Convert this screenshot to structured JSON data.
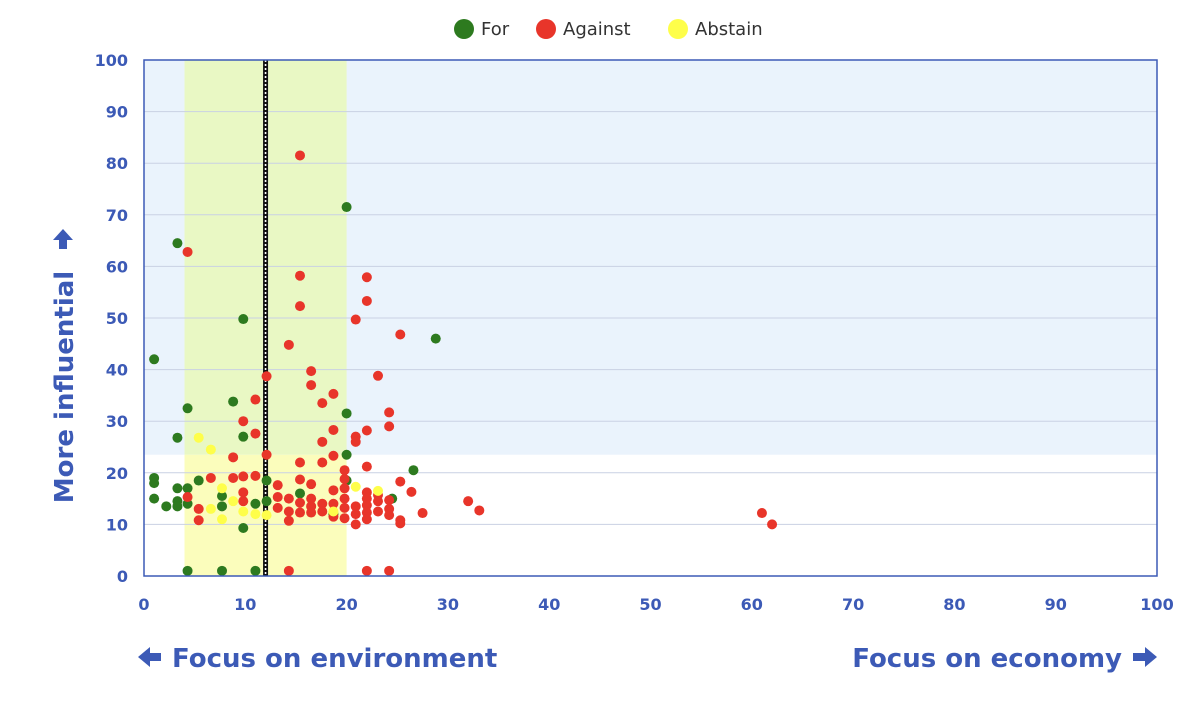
{
  "chart_data": {
    "type": "scatter",
    "xlim": [
      0,
      100
    ],
    "ylim": [
      0,
      100
    ],
    "x_ticks": [
      0,
      10,
      20,
      30,
      40,
      50,
      60,
      70,
      80,
      90,
      100
    ],
    "y_ticks": [
      0,
      10,
      20,
      30,
      40,
      50,
      60,
      70,
      80,
      90,
      100
    ],
    "grid": true,
    "legend_position": "top-center",
    "x_label_left": "Focus on environment",
    "x_label_right": "Focus on economy",
    "y_label": "More influential",
    "median_line_x": 12,
    "highlight_band_x": [
      4,
      20
    ],
    "influential_threshold_y": 23.5,
    "colors": {
      "for": "#2d7a1f",
      "against": "#e8352a",
      "abstain": "#fefe4a",
      "upper_bg": "#eaf3fc",
      "band_upper": "#e9f8c4",
      "band_lower": "#fbfdbc",
      "tick": "#3c5ab6"
    },
    "series": [
      {
        "name": "For",
        "color": "#2d7a1f",
        "points": [
          [
            3.3,
            64.5
          ],
          [
            1,
            42
          ],
          [
            4.3,
            32.5
          ],
          [
            3.3,
            26.8
          ],
          [
            9.8,
            49.8
          ],
          [
            8.8,
            33.8
          ],
          [
            9.8,
            27
          ],
          [
            20,
            71.5
          ],
          [
            28.8,
            46
          ],
          [
            20,
            31.5
          ],
          [
            20,
            23.5
          ],
          [
            20,
            18.5
          ],
          [
            26.6,
            20.5
          ],
          [
            24.5,
            15
          ],
          [
            1,
            19
          ],
          [
            1,
            18
          ],
          [
            1,
            15
          ],
          [
            2.2,
            13.5
          ],
          [
            3.3,
            14.5
          ],
          [
            3.3,
            13.5
          ],
          [
            3.3,
            17
          ],
          [
            4.3,
            17
          ],
          [
            4.3,
            14
          ],
          [
            5.4,
            18.5
          ],
          [
            7.7,
            15.5
          ],
          [
            7.7,
            13.5
          ],
          [
            9.8,
            9.3
          ],
          [
            11,
            14
          ],
          [
            12.1,
            18.5
          ],
          [
            12.1,
            14.5
          ],
          [
            15.4,
            16
          ],
          [
            18.7,
            12
          ],
          [
            4.3,
            1
          ],
          [
            7.7,
            1
          ],
          [
            11,
            1
          ]
        ]
      },
      {
        "name": "Against",
        "color": "#e8352a",
        "points": [
          [
            4.3,
            62.8
          ],
          [
            15.4,
            81.5
          ],
          [
            15.4,
            58.2
          ],
          [
            15.4,
            52.3
          ],
          [
            14.3,
            44.8
          ],
          [
            12.1,
            38.7
          ],
          [
            11,
            34.2
          ],
          [
            11,
            27.6
          ],
          [
            9.8,
            30
          ],
          [
            9.8,
            19.3
          ],
          [
            8.8,
            23
          ],
          [
            8.8,
            19
          ],
          [
            6.6,
            19
          ],
          [
            5.4,
            13
          ],
          [
            5.4,
            10.8
          ],
          [
            4.3,
            15.3
          ],
          [
            9.8,
            16.2
          ],
          [
            9.8,
            14.5
          ],
          [
            11,
            19.4
          ],
          [
            12.1,
            23.5
          ],
          [
            13.2,
            17.6
          ],
          [
            13.2,
            15.3
          ],
          [
            13.2,
            13.2
          ],
          [
            14.3,
            15
          ],
          [
            14.3,
            12.5
          ],
          [
            14.3,
            10.7
          ],
          [
            15.4,
            18.7
          ],
          [
            15.4,
            22
          ],
          [
            15.4,
            14.2
          ],
          [
            15.4,
            12.3
          ],
          [
            16.5,
            39.7
          ],
          [
            16.5,
            37
          ],
          [
            16.5,
            17.8
          ],
          [
            16.5,
            15
          ],
          [
            16.5,
            13.5
          ],
          [
            16.5,
            12.3
          ],
          [
            17.6,
            33.5
          ],
          [
            17.6,
            26
          ],
          [
            17.6,
            22
          ],
          [
            17.6,
            14
          ],
          [
            17.6,
            12.5
          ],
          [
            18.7,
            35.3
          ],
          [
            18.7,
            28.3
          ],
          [
            18.7,
            23.3
          ],
          [
            18.7,
            16.6
          ],
          [
            18.7,
            14
          ],
          [
            18.7,
            11.5
          ],
          [
            19.8,
            20.5
          ],
          [
            19.8,
            18.8
          ],
          [
            19.8,
            17
          ],
          [
            19.8,
            15
          ],
          [
            19.8,
            13.2
          ],
          [
            19.8,
            11.2
          ],
          [
            20.9,
            49.7
          ],
          [
            20.9,
            27
          ],
          [
            20.9,
            26
          ],
          [
            20.9,
            13.5
          ],
          [
            20.9,
            12
          ],
          [
            20.9,
            10
          ],
          [
            22,
            57.9
          ],
          [
            22,
            53.3
          ],
          [
            22,
            28.2
          ],
          [
            22,
            21.2
          ],
          [
            22,
            16.2
          ],
          [
            22,
            15
          ],
          [
            22,
            13.7
          ],
          [
            22,
            12.3
          ],
          [
            22,
            11
          ],
          [
            23.1,
            38.8
          ],
          [
            23.1,
            15.7
          ],
          [
            23.1,
            14.5
          ],
          [
            23.1,
            12.5
          ],
          [
            24.2,
            31.7
          ],
          [
            24.2,
            29
          ],
          [
            24.2,
            14.7
          ],
          [
            24.2,
            13
          ],
          [
            24.2,
            11.8
          ],
          [
            25.3,
            46.8
          ],
          [
            25.3,
            18.3
          ],
          [
            25.3,
            10.8
          ],
          [
            25.3,
            10.2
          ],
          [
            26.4,
            16.3
          ],
          [
            27.5,
            12.2
          ],
          [
            32,
            14.5
          ],
          [
            33.1,
            12.7
          ],
          [
            61,
            12.2
          ],
          [
            62,
            10
          ],
          [
            14.3,
            1
          ],
          [
            22,
            1
          ],
          [
            24.2,
            1
          ]
        ]
      },
      {
        "name": "Abstain",
        "color": "#fefe4a",
        "points": [
          [
            5.4,
            26.8
          ],
          [
            6.6,
            24.5
          ],
          [
            6.6,
            13
          ],
          [
            7.7,
            17
          ],
          [
            7.7,
            11
          ],
          [
            8.8,
            14.5
          ],
          [
            9.8,
            12.5
          ],
          [
            11,
            12
          ],
          [
            12.1,
            11.8
          ],
          [
            18.7,
            12.5
          ],
          [
            20.9,
            17.3
          ],
          [
            23.1,
            16.5
          ]
        ]
      }
    ]
  }
}
